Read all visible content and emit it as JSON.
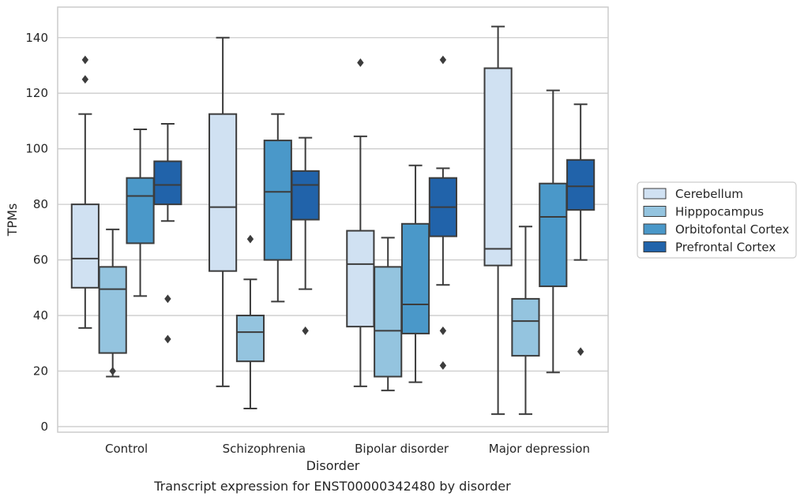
{
  "caption": "Transcript expression for ENST00000342480 by disorder",
  "chart_data": {
    "type": "boxplot",
    "xlabel": "Disorder",
    "ylabel": "TPMs",
    "ylim": [
      -2,
      151
    ],
    "yticks": [
      0,
      20,
      40,
      60,
      80,
      100,
      120,
      140
    ],
    "grid": true,
    "legend_position": "right",
    "categories": [
      "Control",
      "Schizophrenia",
      "Bipolar disorder",
      "Major depression"
    ],
    "series": [
      {
        "name": "Cerebellum",
        "color": "#d0e1f2",
        "boxes": [
          {
            "whisker_low": 35.5,
            "q1": 50,
            "median": 60.5,
            "q3": 80,
            "whisker_high": 112.5,
            "outliers": [
              125,
              132
            ]
          },
          {
            "whisker_low": 14.5,
            "q1": 56,
            "median": 79,
            "q3": 112.5,
            "whisker_high": 140,
            "outliers": []
          },
          {
            "whisker_low": 14.5,
            "q1": 36,
            "median": 58.5,
            "q3": 70.5,
            "whisker_high": 104.5,
            "outliers": [
              131
            ]
          },
          {
            "whisker_low": 4.5,
            "q1": 58,
            "median": 64,
            "q3": 129,
            "whisker_high": 144,
            "outliers": []
          }
        ]
      },
      {
        "name": "Hipppocampus",
        "color": "#94c4df",
        "boxes": [
          {
            "whisker_low": 18,
            "q1": 26.5,
            "median": 49.5,
            "q3": 57.5,
            "whisker_high": 71,
            "outliers": [
              20
            ]
          },
          {
            "whisker_low": 6.5,
            "q1": 23.5,
            "median": 34,
            "q3": 40,
            "whisker_high": 53,
            "outliers": [
              67.5
            ]
          },
          {
            "whisker_low": 13,
            "q1": 18,
            "median": 34.5,
            "q3": 57.5,
            "whisker_high": 68,
            "outliers": []
          },
          {
            "whisker_low": 4.5,
            "q1": 25.5,
            "median": 38,
            "q3": 46,
            "whisker_high": 72,
            "outliers": []
          }
        ]
      },
      {
        "name": "Orbitofontal Cortex",
        "color": "#4a98c9",
        "boxes": [
          {
            "whisker_low": 47,
            "q1": 66,
            "median": 83,
            "q3": 89.5,
            "whisker_high": 107,
            "outliers": []
          },
          {
            "whisker_low": 45,
            "q1": 60,
            "median": 84.5,
            "q3": 103,
            "whisker_high": 112.5,
            "outliers": []
          },
          {
            "whisker_low": 16,
            "q1": 33.5,
            "median": 44,
            "q3": 73,
            "whisker_high": 94,
            "outliers": []
          },
          {
            "whisker_low": 19.5,
            "q1": 50.5,
            "median": 75.5,
            "q3": 87.5,
            "whisker_high": 121,
            "outliers": []
          }
        ]
      },
      {
        "name": "Prefrontal Cortex",
        "color": "#2163aa",
        "boxes": [
          {
            "whisker_low": 74,
            "q1": 80,
            "median": 87,
            "q3": 95.5,
            "whisker_high": 109,
            "outliers": [
              46,
              31.5
            ]
          },
          {
            "whisker_low": 49.5,
            "q1": 74.5,
            "median": 87,
            "q3": 92,
            "whisker_high": 104,
            "outliers": [
              34.5
            ]
          },
          {
            "whisker_low": 51,
            "q1": 68.5,
            "median": 79,
            "q3": 89.5,
            "whisker_high": 93,
            "outliers": [
              132,
              34.5,
              22
            ]
          },
          {
            "whisker_low": 60,
            "q1": 78,
            "median": 86.5,
            "q3": 96,
            "whisker_high": 116,
            "outliers": [
              27
            ]
          }
        ]
      }
    ]
  }
}
